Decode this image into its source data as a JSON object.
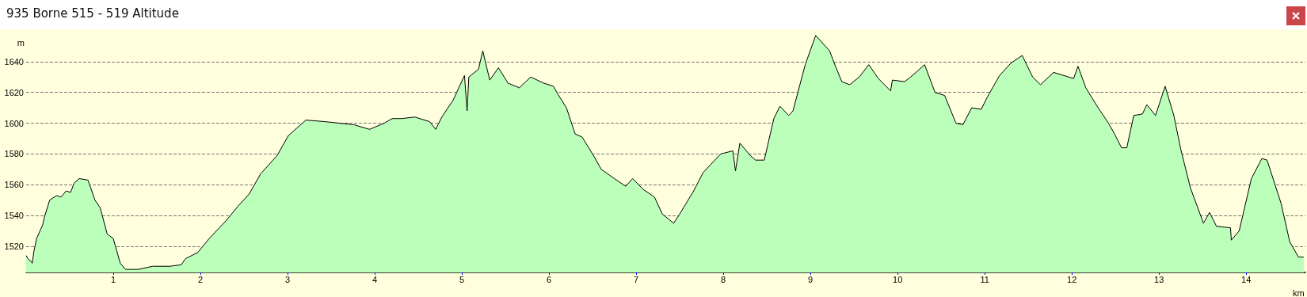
{
  "chart_data": {
    "type": "area",
    "title": "935 Borne 515 - 519 Altitude",
    "xlabel": "km",
    "ylabel": "m",
    "x": [
      0,
      0.02,
      0.06,
      0.07,
      0.09,
      0.12,
      0.19,
      0.21,
      0.27,
      0.35,
      0.4,
      0.46,
      0.51,
      0.55,
      0.61,
      0.71,
      0.79,
      0.85,
      0.93,
      1.0,
      1.08,
      1.14,
      1.29,
      1.45,
      1.65,
      1.78,
      1.83,
      1.97,
      2.1,
      2.3,
      2.43,
      2.56,
      2.69,
      2.88,
      3.01,
      3.11,
      3.21,
      3.43,
      3.76,
      3.94,
      4.11,
      4.2,
      4.31,
      4.46,
      4.63,
      4.7,
      4.77,
      4.9,
      5.03,
      5.06,
      5.08,
      5.19,
      5.24,
      5.32,
      5.42,
      5.53,
      5.66,
      5.79,
      5.94,
      6.05,
      6.1,
      6.2,
      6.3,
      6.38,
      6.51,
      6.6,
      6.75,
      6.88,
      6.96,
      7.08,
      7.21,
      7.3,
      7.43,
      7.5,
      7.66,
      7.77,
      7.97,
      8.11,
      8.14,
      8.19,
      8.31,
      8.37,
      8.47,
      8.58,
      8.65,
      8.75,
      8.8,
      8.94,
      9.06,
      9.22,
      9.28,
      9.36,
      9.45,
      9.56,
      9.67,
      9.78,
      9.92,
      9.94,
      10.08,
      10.15,
      10.31,
      10.43,
      10.54,
      10.67,
      10.75,
      10.85,
      10.96,
      11.03,
      11.17,
      11.3,
      11.43,
      11.55,
      11.64,
      11.79,
      12.02,
      12.07,
      12.16,
      12.29,
      12.42,
      12.49,
      12.57,
      12.63,
      12.71,
      12.81,
      12.86,
      12.96,
      13.07,
      13.17,
      13.25,
      13.36,
      13.51,
      13.58,
      13.66,
      13.82,
      13.83,
      13.92,
      14.06,
      14.18,
      14.24,
      14.4,
      14.5,
      14.6,
      14.66
    ],
    "series": [
      {
        "color": "#bbffbb",
        "values": [
          1514,
          1512,
          1510,
          1509,
          1517,
          1525,
          1534,
          1539,
          1550,
          1553,
          1552,
          1556,
          1555,
          1561,
          1564,
          1563,
          1550,
          1545,
          1528,
          1525,
          1509,
          1505,
          1505,
          1507,
          1507,
          1508,
          1512,
          1516,
          1525,
          1537,
          1546,
          1554,
          1567,
          1579,
          1592,
          1597,
          1602,
          1601,
          1599,
          1596,
          1600,
          1603,
          1603,
          1604,
          1601,
          1596,
          1604,
          1615,
          1631,
          1608,
          1630,
          1635,
          1647,
          1628,
          1636,
          1626,
          1623,
          1630,
          1626,
          1624,
          1619,
          1610,
          1593,
          1591,
          1579,
          1570,
          1564,
          1559,
          1564,
          1557,
          1552,
          1541,
          1535,
          1541,
          1556,
          1568,
          1580,
          1582,
          1569,
          1587,
          1579,
          1576,
          1576,
          1603,
          1611,
          1605,
          1608,
          1638,
          1657,
          1647,
          1638,
          1627,
          1625,
          1630,
          1638,
          1629,
          1621,
          1628,
          1627,
          1630,
          1638,
          1620,
          1618,
          1600,
          1599,
          1610,
          1609,
          1617,
          1631,
          1639,
          1644,
          1630,
          1625,
          1633,
          1629,
          1637,
          1623,
          1611,
          1600,
          1593,
          1584,
          1584,
          1605,
          1606,
          1612,
          1605,
          1624,
          1605,
          1583,
          1558,
          1535,
          1542,
          1533,
          1532,
          1524,
          1530,
          1564,
          1577,
          1576,
          1548,
          1523,
          1513,
          1513
        ]
      }
    ],
    "xlim": [
      0,
      14.68
    ],
    "xticks": [
      1,
      2,
      3,
      4,
      5,
      6,
      7,
      8,
      9,
      10,
      11,
      12,
      13,
      14
    ],
    "ylim": [
      1503,
      1661
    ],
    "yticks": [
      1520,
      1540,
      1560,
      1580,
      1600,
      1620,
      1640
    ],
    "grid": "y",
    "marker": "none",
    "line_style": "solid"
  }
}
